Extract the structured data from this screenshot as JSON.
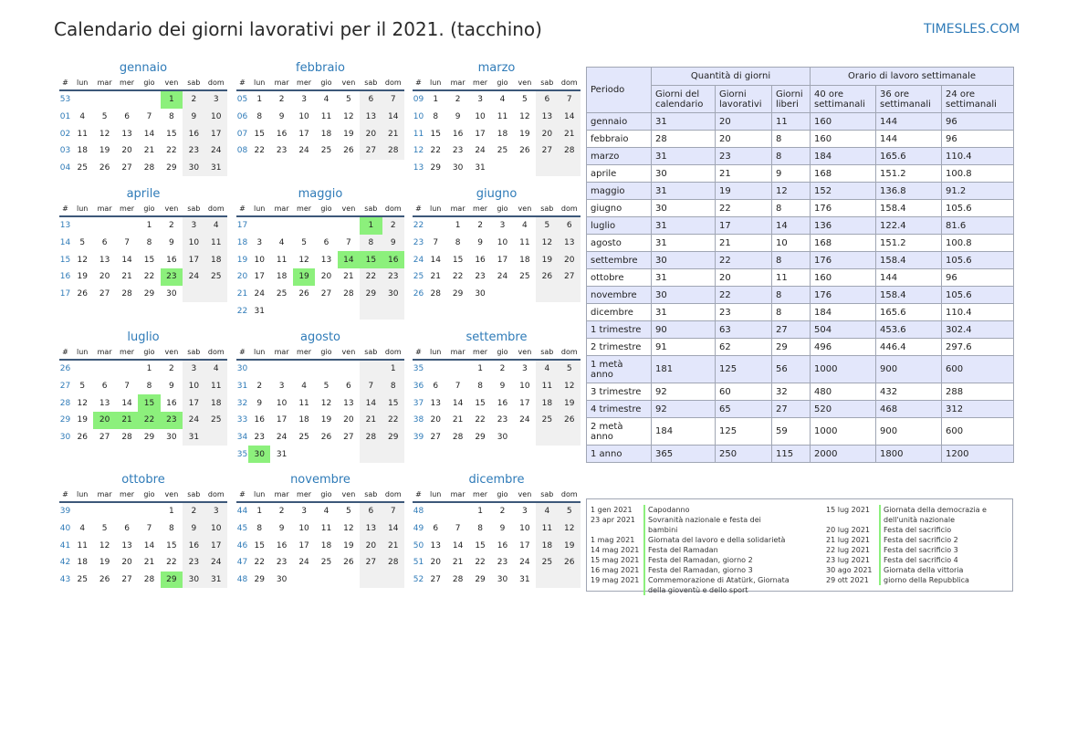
{
  "header": {
    "title": "Calendario dei giorni lavorativi per il 2021. (tacchino)",
    "site": "TIMESLES.COM"
  },
  "weekday_header": [
    "#",
    "lun",
    "mar",
    "mer",
    "gio",
    "ven",
    "sab",
    "dom"
  ],
  "months": [
    {
      "name": "gennaio",
      "rows": [
        {
          "w": "53",
          "d": [
            "",
            "",
            "",
            "",
            "1",
            "2",
            "3"
          ],
          "h": [
            4
          ]
        },
        {
          "w": "01",
          "d": [
            "4",
            "5",
            "6",
            "7",
            "8",
            "9",
            "10"
          ]
        },
        {
          "w": "02",
          "d": [
            "11",
            "12",
            "13",
            "14",
            "15",
            "16",
            "17"
          ]
        },
        {
          "w": "03",
          "d": [
            "18",
            "19",
            "20",
            "21",
            "22",
            "23",
            "24"
          ]
        },
        {
          "w": "04",
          "d": [
            "25",
            "26",
            "27",
            "28",
            "29",
            "30",
            "31"
          ]
        }
      ]
    },
    {
      "name": "febbraio",
      "rows": [
        {
          "w": "05",
          "d": [
            "1",
            "2",
            "3",
            "4",
            "5",
            "6",
            "7"
          ]
        },
        {
          "w": "06",
          "d": [
            "8",
            "9",
            "10",
            "11",
            "12",
            "13",
            "14"
          ]
        },
        {
          "w": "07",
          "d": [
            "15",
            "16",
            "17",
            "18",
            "19",
            "20",
            "21"
          ]
        },
        {
          "w": "08",
          "d": [
            "22",
            "23",
            "24",
            "25",
            "26",
            "27",
            "28"
          ]
        }
      ]
    },
    {
      "name": "marzo",
      "rows": [
        {
          "w": "09",
          "d": [
            "1",
            "2",
            "3",
            "4",
            "5",
            "6",
            "7"
          ]
        },
        {
          "w": "10",
          "d": [
            "8",
            "9",
            "10",
            "11",
            "12",
            "13",
            "14"
          ]
        },
        {
          "w": "11",
          "d": [
            "15",
            "16",
            "17",
            "18",
            "19",
            "20",
            "21"
          ]
        },
        {
          "w": "12",
          "d": [
            "22",
            "23",
            "24",
            "25",
            "26",
            "27",
            "28"
          ]
        },
        {
          "w": "13",
          "d": [
            "29",
            "30",
            "31",
            "",
            "",
            "",
            ""
          ]
        }
      ]
    },
    {
      "name": "aprile",
      "rows": [
        {
          "w": "13",
          "d": [
            "",
            "",
            "",
            "1",
            "2",
            "3",
            "4"
          ]
        },
        {
          "w": "14",
          "d": [
            "5",
            "6",
            "7",
            "8",
            "9",
            "10",
            "11"
          ]
        },
        {
          "w": "15",
          "d": [
            "12",
            "13",
            "14",
            "15",
            "16",
            "17",
            "18"
          ]
        },
        {
          "w": "16",
          "d": [
            "19",
            "20",
            "21",
            "22",
            "23",
            "24",
            "25"
          ],
          "h": [
            4
          ]
        },
        {
          "w": "17",
          "d": [
            "26",
            "27",
            "28",
            "29",
            "30",
            "",
            ""
          ]
        }
      ]
    },
    {
      "name": "maggio",
      "rows": [
        {
          "w": "17",
          "d": [
            "",
            "",
            "",
            "",
            "",
            "1",
            "2"
          ],
          "h": [
            5
          ]
        },
        {
          "w": "18",
          "d": [
            "3",
            "4",
            "5",
            "6",
            "7",
            "8",
            "9"
          ]
        },
        {
          "w": "19",
          "d": [
            "10",
            "11",
            "12",
            "13",
            "14",
            "15",
            "16"
          ],
          "h": [
            4,
            5,
            6
          ]
        },
        {
          "w": "20",
          "d": [
            "17",
            "18",
            "19",
            "20",
            "21",
            "22",
            "23"
          ],
          "h": [
            2
          ]
        },
        {
          "w": "21",
          "d": [
            "24",
            "25",
            "26",
            "27",
            "28",
            "29",
            "30"
          ]
        },
        {
          "w": "22",
          "d": [
            "31",
            "",
            "",
            "",
            "",
            "",
            ""
          ]
        }
      ]
    },
    {
      "name": "giugno",
      "rows": [
        {
          "w": "22",
          "d": [
            "",
            "1",
            "2",
            "3",
            "4",
            "5",
            "6"
          ]
        },
        {
          "w": "23",
          "d": [
            "7",
            "8",
            "9",
            "10",
            "11",
            "12",
            "13"
          ]
        },
        {
          "w": "24",
          "d": [
            "14",
            "15",
            "16",
            "17",
            "18",
            "19",
            "20"
          ]
        },
        {
          "w": "25",
          "d": [
            "21",
            "22",
            "23",
            "24",
            "25",
            "26",
            "27"
          ]
        },
        {
          "w": "26",
          "d": [
            "28",
            "29",
            "30",
            "",
            "",
            "",
            ""
          ]
        }
      ]
    },
    {
      "name": "luglio",
      "rows": [
        {
          "w": "26",
          "d": [
            "",
            "",
            "",
            "1",
            "2",
            "3",
            "4"
          ]
        },
        {
          "w": "27",
          "d": [
            "5",
            "6",
            "7",
            "8",
            "9",
            "10",
            "11"
          ]
        },
        {
          "w": "28",
          "d": [
            "12",
            "13",
            "14",
            "15",
            "16",
            "17",
            "18"
          ],
          "h": [
            3
          ]
        },
        {
          "w": "29",
          "d": [
            "19",
            "20",
            "21",
            "22",
            "23",
            "24",
            "25"
          ],
          "h": [
            1,
            2,
            3,
            4
          ]
        },
        {
          "w": "30",
          "d": [
            "26",
            "27",
            "28",
            "29",
            "30",
            "31",
            ""
          ]
        }
      ]
    },
    {
      "name": "agosto",
      "rows": [
        {
          "w": "30",
          "d": [
            "",
            "",
            "",
            "",
            "",
            "",
            "1"
          ]
        },
        {
          "w": "31",
          "d": [
            "2",
            "3",
            "4",
            "5",
            "6",
            "7",
            "8"
          ]
        },
        {
          "w": "32",
          "d": [
            "9",
            "10",
            "11",
            "12",
            "13",
            "14",
            "15"
          ]
        },
        {
          "w": "33",
          "d": [
            "16",
            "17",
            "18",
            "19",
            "20",
            "21",
            "22"
          ]
        },
        {
          "w": "34",
          "d": [
            "23",
            "24",
            "25",
            "26",
            "27",
            "28",
            "29"
          ]
        },
        {
          "w": "35",
          "d": [
            "30",
            "31",
            "",
            "",
            "",
            "",
            ""
          ],
          "h": [
            0
          ]
        }
      ]
    },
    {
      "name": "settembre",
      "rows": [
        {
          "w": "35",
          "d": [
            "",
            "",
            "1",
            "2",
            "3",
            "4",
            "5"
          ]
        },
        {
          "w": "36",
          "d": [
            "6",
            "7",
            "8",
            "9",
            "10",
            "11",
            "12"
          ]
        },
        {
          "w": "37",
          "d": [
            "13",
            "14",
            "15",
            "16",
            "17",
            "18",
            "19"
          ]
        },
        {
          "w": "38",
          "d": [
            "20",
            "21",
            "22",
            "23",
            "24",
            "25",
            "26"
          ]
        },
        {
          "w": "39",
          "d": [
            "27",
            "28",
            "29",
            "30",
            "",
            "",
            ""
          ]
        }
      ]
    },
    {
      "name": "ottobre",
      "rows": [
        {
          "w": "39",
          "d": [
            "",
            "",
            "",
            "",
            "1",
            "2",
            "3"
          ]
        },
        {
          "w": "40",
          "d": [
            "4",
            "5",
            "6",
            "7",
            "8",
            "9",
            "10"
          ]
        },
        {
          "w": "41",
          "d": [
            "11",
            "12",
            "13",
            "14",
            "15",
            "16",
            "17"
          ]
        },
        {
          "w": "42",
          "d": [
            "18",
            "19",
            "20",
            "21",
            "22",
            "23",
            "24"
          ]
        },
        {
          "w": "43",
          "d": [
            "25",
            "26",
            "27",
            "28",
            "29",
            "30",
            "31"
          ],
          "h": [
            4
          ]
        }
      ]
    },
    {
      "name": "novembre",
      "rows": [
        {
          "w": "44",
          "d": [
            "1",
            "2",
            "3",
            "4",
            "5",
            "6",
            "7"
          ]
        },
        {
          "w": "45",
          "d": [
            "8",
            "9",
            "10",
            "11",
            "12",
            "13",
            "14"
          ]
        },
        {
          "w": "46",
          "d": [
            "15",
            "16",
            "17",
            "18",
            "19",
            "20",
            "21"
          ]
        },
        {
          "w": "47",
          "d": [
            "22",
            "23",
            "24",
            "25",
            "26",
            "27",
            "28"
          ]
        },
        {
          "w": "48",
          "d": [
            "29",
            "30",
            "",
            "",
            "",
            "",
            ""
          ]
        }
      ]
    },
    {
      "name": "dicembre",
      "rows": [
        {
          "w": "48",
          "d": [
            "",
            "",
            "1",
            "2",
            "3",
            "4",
            "5"
          ]
        },
        {
          "w": "49",
          "d": [
            "6",
            "7",
            "8",
            "9",
            "10",
            "11",
            "12"
          ]
        },
        {
          "w": "50",
          "d": [
            "13",
            "14",
            "15",
            "16",
            "17",
            "18",
            "19"
          ]
        },
        {
          "w": "51",
          "d": [
            "20",
            "21",
            "22",
            "23",
            "24",
            "25",
            "26"
          ]
        },
        {
          "w": "52",
          "d": [
            "27",
            "28",
            "29",
            "30",
            "31",
            "",
            ""
          ]
        }
      ]
    }
  ],
  "stats": {
    "periodo_label": "Periodo",
    "group_days": "Quantità di giorni",
    "group_hours": "Orario di lavoro settimanale",
    "columns": [
      "Giorni del calendario",
      "Giorni lavorativi",
      "Giorni liberi",
      "40 ore settimanali",
      "36 ore settimanali",
      "24 ore settimanali"
    ],
    "rows": [
      [
        "gennaio",
        "31",
        "20",
        "11",
        "160",
        "144",
        "96"
      ],
      [
        "febbraio",
        "28",
        "20",
        "8",
        "160",
        "144",
        "96"
      ],
      [
        "marzo",
        "31",
        "23",
        "8",
        "184",
        "165.6",
        "110.4"
      ],
      [
        "aprile",
        "30",
        "21",
        "9",
        "168",
        "151.2",
        "100.8"
      ],
      [
        "maggio",
        "31",
        "19",
        "12",
        "152",
        "136.8",
        "91.2"
      ],
      [
        "giugno",
        "30",
        "22",
        "8",
        "176",
        "158.4",
        "105.6"
      ],
      [
        "luglio",
        "31",
        "17",
        "14",
        "136",
        "122.4",
        "81.6"
      ],
      [
        "agosto",
        "31",
        "21",
        "10",
        "168",
        "151.2",
        "100.8"
      ],
      [
        "settembre",
        "30",
        "22",
        "8",
        "176",
        "158.4",
        "105.6"
      ],
      [
        "ottobre",
        "31",
        "20",
        "11",
        "160",
        "144",
        "96"
      ],
      [
        "novembre",
        "30",
        "22",
        "8",
        "176",
        "158.4",
        "105.6"
      ],
      [
        "dicembre",
        "31",
        "23",
        "8",
        "184",
        "165.6",
        "110.4"
      ],
      [
        "1 trimestre",
        "90",
        "63",
        "27",
        "504",
        "453.6",
        "302.4"
      ],
      [
        "2 trimestre",
        "91",
        "62",
        "29",
        "496",
        "446.4",
        "297.6"
      ],
      [
        "1 metà anno",
        "181",
        "125",
        "56",
        "1000",
        "900",
        "600"
      ],
      [
        "3 trimestre",
        "92",
        "60",
        "32",
        "480",
        "432",
        "288"
      ],
      [
        "4 trimestre",
        "92",
        "65",
        "27",
        "520",
        "468",
        "312"
      ],
      [
        "2 metà anno",
        "184",
        "125",
        "59",
        "1000",
        "900",
        "600"
      ],
      [
        "1 anno",
        "365",
        "250",
        "115",
        "2000",
        "1800",
        "1200"
      ]
    ]
  },
  "holidays_left": [
    {
      "date": "1 gen 2021",
      "name": "Capodanno"
    },
    {
      "date": "23 apr 2021",
      "name": "Sovranità nazionale e festa dei bambini"
    },
    {
      "date": "1 mag 2021",
      "name": "Giornata del lavoro e della solidarietà"
    },
    {
      "date": "14 mag 2021",
      "name": "Festa del Ramadan"
    },
    {
      "date": "15 mag 2021",
      "name": "Festa del Ramadan, giorno 2"
    },
    {
      "date": "16 mag 2021",
      "name": "Festa del Ramadan, giorno 3"
    },
    {
      "date": "19 mag 2021",
      "name": "Commemorazione di Atatürk, Giornata della gioventù e dello sport"
    }
  ],
  "holidays_right": [
    {
      "date": "15 lug 2021",
      "name": "Giornata della democrazia e dell'unità nazionale"
    },
    {
      "date": "20 lug 2021",
      "name": "Festa del sacrificio"
    },
    {
      "date": "21 lug 2021",
      "name": "Festa del sacrificio 2"
    },
    {
      "date": "22 lug 2021",
      "name": "Festa del sacrificio 3"
    },
    {
      "date": "23 lug 2021",
      "name": "Festa del sacrificio 4"
    },
    {
      "date": "30 ago 2021",
      "name": "Giornata della vittoria"
    },
    {
      "date": "29 ott 2021",
      "name": "giorno della Repubblica"
    }
  ]
}
